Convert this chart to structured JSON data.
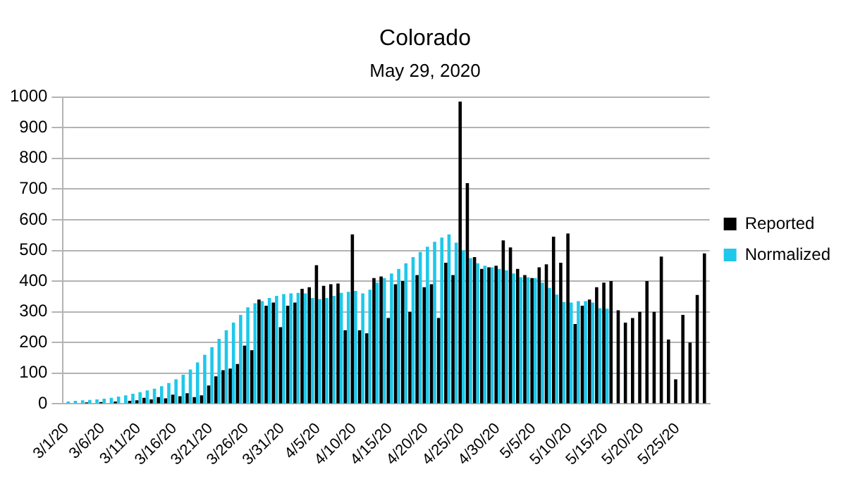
{
  "chart_data": {
    "type": "bar",
    "title": "Colorado",
    "subtitle": "May 29, 2020",
    "categories": [
      "3/1/20",
      null,
      null,
      null,
      null,
      "3/6/20",
      null,
      null,
      null,
      null,
      "3/11/20",
      null,
      null,
      null,
      null,
      "3/16/20",
      null,
      null,
      null,
      null,
      "3/21/20",
      null,
      null,
      null,
      null,
      "3/26/20",
      null,
      null,
      null,
      null,
      "3/31/20",
      null,
      null,
      null,
      null,
      "4/5/20",
      null,
      null,
      null,
      null,
      "4/10/20",
      null,
      null,
      null,
      null,
      "4/15/20",
      null,
      null,
      null,
      null,
      "4/20/20",
      null,
      null,
      null,
      null,
      "4/25/20",
      null,
      null,
      null,
      null,
      "4/30/20",
      null,
      null,
      null,
      null,
      "5/5/20",
      null,
      null,
      null,
      null,
      "5/10/20",
      null,
      null,
      null,
      null,
      "5/15/20",
      null,
      null,
      null,
      null,
      "5/20/20",
      null,
      null,
      null,
      null,
      "5/25/20",
      null,
      null,
      null,
      null
    ],
    "series": [
      {
        "name": "Reported",
        "color": "#000000",
        "values": [
          2,
          0,
          null,
          5,
          null,
          6,
          2,
          8,
          null,
          10,
          12,
          20,
          15,
          22,
          18,
          30,
          25,
          35,
          22,
          28,
          60,
          90,
          110,
          115,
          130,
          190,
          175,
          340,
          320,
          330,
          250,
          320,
          330,
          375,
          380,
          452,
          385,
          390,
          392,
          240,
          552,
          240,
          230,
          410,
          415,
          280,
          390,
          400,
          300,
          420,
          380,
          390,
          280,
          460,
          420,
          985,
          719,
          478,
          440,
          445,
          450,
          533,
          510,
          440,
          420,
          410,
          445,
          455,
          545,
          460,
          555,
          260,
          320,
          340,
          380,
          395,
          400,
          305,
          265,
          280,
          300,
          400,
          300,
          480,
          210,
          80,
          290,
          200,
          355,
          490
        ]
      },
      {
        "name": "Normalized",
        "color": "#1ec8ea",
        "values": [
          8,
          10,
          12,
          13,
          15,
          17,
          20,
          24,
          28,
          33,
          38,
          44,
          50,
          58,
          68,
          80,
          95,
          112,
          135,
          160,
          185,
          212,
          240,
          265,
          290,
          315,
          328,
          335,
          345,
          352,
          358,
          360,
          362,
          360,
          345,
          342,
          345,
          352,
          362,
          365,
          368,
          360,
          372,
          395,
          410,
          425,
          440,
          458,
          478,
          495,
          512,
          528,
          542,
          552,
          525,
          500,
          475,
          458,
          450,
          445,
          440,
          435,
          425,
          413,
          412,
          410,
          395,
          378,
          356,
          332,
          330,
          335,
          335,
          330,
          312,
          310,
          null,
          null,
          null,
          null,
          null,
          null,
          null,
          null,
          null,
          null,
          null,
          null,
          null,
          null
        ]
      }
    ],
    "ylim": [
      0,
      1000
    ],
    "yticks": [
      0,
      100,
      200,
      300,
      400,
      500,
      600,
      700,
      800,
      900,
      1000
    ],
    "grid": "y",
    "legend": "right"
  }
}
